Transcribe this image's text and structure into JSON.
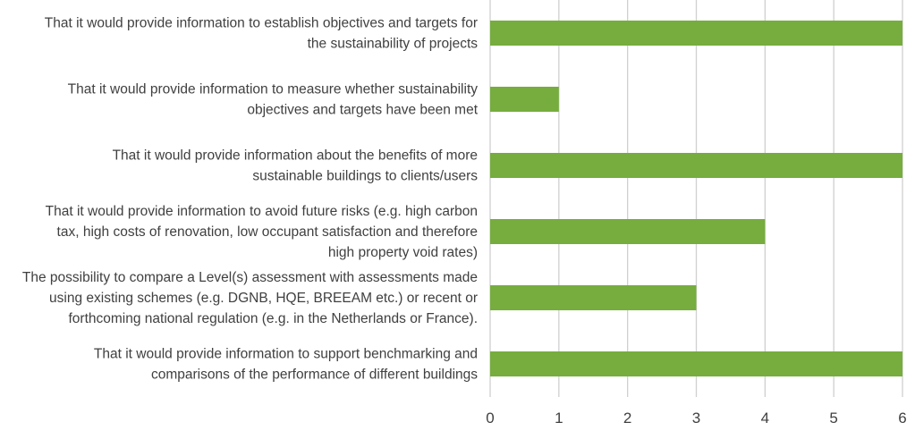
{
  "chart_data": {
    "type": "bar",
    "orientation": "horizontal",
    "categories": [
      [
        "That it would provide information to establish objectives and targets for",
        "the sustainability of projects"
      ],
      [
        "That it would provide information to measure whether sustainability",
        "objectives and targets have been met"
      ],
      [
        "That it would provide information about the benefits of more",
        "sustainable buildings to clients/users"
      ],
      [
        "That it would provide information to avoid future risks (e.g. high carbon",
        "tax, high costs of renovation, low occupant satisfaction and therefore",
        "high property void rates)"
      ],
      [
        "The possibility to compare a Level(s) assessment with assessments made",
        "using existing schemes (e.g. DGNB, HQE, BREEAM etc.) or recent or",
        "forthcoming national regulation (e.g. in the Netherlands or France)."
      ],
      [
        "That it would provide information to support benchmarking and",
        "comparisons of the performance of different buildings"
      ]
    ],
    "values": [
      6,
      1,
      6,
      4,
      3,
      6
    ],
    "xlim": [
      0,
      6
    ],
    "xticks": [
      "0",
      "1",
      "2",
      "3",
      "4",
      "5",
      "6"
    ],
    "grid": "vertical",
    "title": "",
    "xlabel": "",
    "ylabel": "",
    "colors": {
      "bar": "#76AD3E",
      "grid": "#d0d0d0",
      "text": "#404040"
    }
  }
}
